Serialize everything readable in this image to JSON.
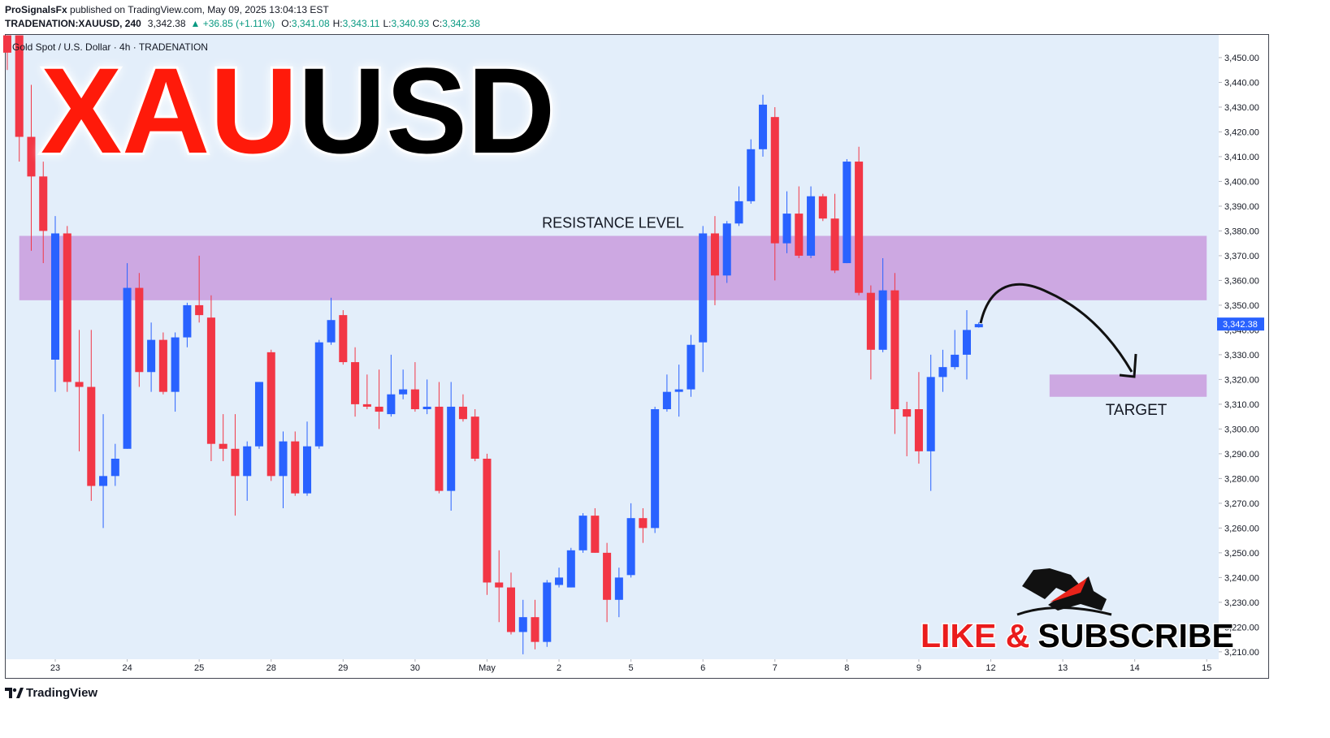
{
  "header": {
    "author": "ProSignalsFx",
    "published": " published on TradingView.com, May 09, 2025 13:04:13 EST",
    "symbol": "TRADENATION:XAUUSD, 240",
    "last": "3,342.38",
    "change": "▲ +36.85 (+1.11%)",
    "ohlc": [
      {
        "label": "O:",
        "value": "3,341.08"
      },
      {
        "label": "H:",
        "value": "3,343.11"
      },
      {
        "label": "L:",
        "value": "3,340.93"
      },
      {
        "label": "C:",
        "value": "3,342.38"
      }
    ],
    "legend": "Gold Spot / U.S. Dollar · 4h · TRADENATION"
  },
  "chart_data": {
    "type": "candlestick",
    "title_red": "XAU",
    "title_black": "USD",
    "up_color": "#2962ff",
    "down_color": "#f23645",
    "open": [
      3459,
      3459,
      3418,
      3402,
      3328,
      3379,
      3319,
      3317,
      3277,
      3281,
      3292,
      3357,
      3323,
      3336,
      3315,
      3337,
      3350,
      3345,
      3294,
      3292,
      3281,
      3293,
      3331,
      3281,
      3295,
      3274,
      3293,
      3335,
      3346,
      3327,
      3310,
      3309,
      3306,
      3314,
      3316,
      3308,
      3309,
      3275,
      3309,
      3305,
      3288,
      3238,
      3236,
      3218,
      3224,
      3214,
      3237,
      3236,
      3251,
      3265,
      3250,
      3231,
      3241,
      3264,
      3260,
      3308,
      3315,
      3316,
      3335,
      3379,
      3362,
      3383,
      3392,
      3413,
      3426,
      3375,
      3387,
      3370,
      3394,
      3385,
      3367,
      3408,
      3355,
      3332,
      3356,
      3308,
      3308,
      3291,
      3321,
      3325,
      3330,
      3341.08
    ],
    "high": [
      3459,
      3459,
      3439,
      3408,
      3386,
      3382,
      3340,
      3340,
      3306,
      3294,
      3367,
      3363,
      3343,
      3339,
      3339,
      3351,
      3370,
      3354,
      3306,
      3306,
      3295,
      3319,
      3332,
      3299,
      3299,
      3303,
      3336,
      3353,
      3348,
      3333,
      3322,
      3324,
      3330,
      3324,
      3327,
      3320,
      3319,
      3319,
      3314,
      3308,
      3290,
      3251,
      3242,
      3231,
      3231,
      3239,
      3244,
      3252,
      3266,
      3268,
      3254,
      3244,
      3270,
      3268,
      3309,
      3322,
      3326,
      3338,
      3382,
      3386,
      3384,
      3398,
      3417,
      3435,
      3430,
      3396,
      3398,
      3398,
      3395,
      3395,
      3409,
      3414,
      3358,
      3369,
      3363,
      3311,
      3323,
      3330,
      3332,
      3340,
      3348,
      3343.11
    ],
    "low": [
      3445,
      3408,
      3372,
      3367,
      3315,
      3315,
      3291,
      3271,
      3260,
      3277,
      3292,
      3317,
      3315,
      3314,
      3307,
      3333,
      3343,
      3287,
      3287,
      3265,
      3271,
      3292,
      3279,
      3268,
      3273,
      3273,
      3292,
      3334,
      3326,
      3305,
      3308,
      3300,
      3305,
      3312,
      3307,
      3306,
      3274,
      3267,
      3303,
      3287,
      3233,
      3222,
      3217,
      3209,
      3211,
      3212,
      3236,
      3236,
      3250,
      3250,
      3222,
      3224,
      3240,
      3254,
      3258,
      3307,
      3305,
      3313,
      3323,
      3350,
      3359,
      3382,
      3391,
      3410,
      3360,
      3371,
      3369,
      3369,
      3384,
      3363,
      3367,
      3354,
      3320,
      3331,
      3298,
      3289,
      3286,
      3275,
      3315,
      3324,
      3320,
      3340.93
    ],
    "close": [
      3452,
      3418,
      3402,
      3380,
      3379,
      3319,
      3317,
      3277,
      3281,
      3288,
      3357,
      3323,
      3336,
      3315,
      3337,
      3350,
      3346,
      3294,
      3292,
      3281,
      3293,
      3319,
      3281,
      3295,
      3274,
      3293,
      3335,
      3344,
      3327,
      3310,
      3309,
      3307,
      3314,
      3316,
      3308,
      3309,
      3275,
      3309,
      3304,
      3288,
      3238,
      3236,
      3218,
      3224,
      3214,
      3238,
      3240,
      3251,
      3265,
      3250,
      3231,
      3240,
      3264,
      3260,
      3308,
      3315,
      3316,
      3334,
      3379,
      3362,
      3383,
      3392,
      3413,
      3431,
      3375,
      3387,
      3370,
      3394,
      3385,
      3364,
      3408,
      3355,
      3332,
      3356,
      3308,
      3305,
      3291,
      3321,
      3325,
      3330,
      3340,
      3342.38
    ],
    "xlim": [
      -0.2,
      101
    ],
    "xticks": [
      {
        "value": 4,
        "label": "23"
      },
      {
        "value": 10,
        "label": "24"
      },
      {
        "value": 16,
        "label": "25"
      },
      {
        "value": 22,
        "label": "28"
      },
      {
        "value": 28,
        "label": "29"
      },
      {
        "value": 34,
        "label": "30"
      },
      {
        "value": 40,
        "label": "May"
      },
      {
        "value": 46,
        "label": "2"
      },
      {
        "value": 52,
        "label": "5"
      },
      {
        "value": 58,
        "label": "6"
      },
      {
        "value": 64,
        "label": "7"
      },
      {
        "value": 70,
        "label": "8"
      },
      {
        "value": 76,
        "label": "9"
      },
      {
        "value": 82,
        "label": "12"
      },
      {
        "value": 88,
        "label": "13"
      },
      {
        "value": 94,
        "label": "14"
      },
      {
        "value": 100,
        "label": "15"
      }
    ],
    "ylim": [
      3207,
      3459.5
    ],
    "yticks": [
      {
        "value": 3210,
        "label": "3,210.00"
      },
      {
        "value": 3220,
        "label": "3,220.00"
      },
      {
        "value": 3230,
        "label": "3,230.00"
      },
      {
        "value": 3240,
        "label": "3,240.00"
      },
      {
        "value": 3250,
        "label": "3,250.00"
      },
      {
        "value": 3260,
        "label": "3,260.00"
      },
      {
        "value": 3270,
        "label": "3,270.00"
      },
      {
        "value": 3280,
        "label": "3,280.00"
      },
      {
        "value": 3290,
        "label": "3,290.00"
      },
      {
        "value": 3300,
        "label": "3,300.00"
      },
      {
        "value": 3310,
        "label": "3,310.00"
      },
      {
        "value": 3320,
        "label": "3,320.00"
      },
      {
        "value": 3330,
        "label": "3,330.00"
      },
      {
        "value": 3340,
        "label": "3,340.00"
      },
      {
        "value": 3350,
        "label": "3,350.00"
      },
      {
        "value": 3360,
        "label": "3,360.00"
      },
      {
        "value": 3370,
        "label": "3,370.00"
      },
      {
        "value": 3380,
        "label": "3,380.00"
      },
      {
        "value": 3390,
        "label": "3,390.00"
      },
      {
        "value": 3400,
        "label": "3,400.00"
      },
      {
        "value": 3410,
        "label": "3,410.00"
      },
      {
        "value": 3420,
        "label": "3,420.00"
      },
      {
        "value": 3430,
        "label": "3,430.00"
      },
      {
        "value": 3440,
        "label": "3,440.00"
      },
      {
        "value": 3450,
        "label": "3,450.00"
      }
    ],
    "last_price": {
      "value": 3342.38,
      "label": "3,342.38"
    },
    "zones": [
      {
        "label": "RESISTANCE LEVEL",
        "low": 3352,
        "high": 3378,
        "from": 1,
        "to": 100,
        "color": "#cda8e2",
        "label_pos": "above"
      },
      {
        "label": "TARGET",
        "low": 3313,
        "high": 3322,
        "from": 86.9,
        "to": 100,
        "color": "#cda8e2",
        "label_pos": "below"
      }
    ],
    "cta_red": "LIKE &",
    "cta_black": "SUBSCRIBE"
  },
  "footer": {
    "brand": "TradingView"
  }
}
